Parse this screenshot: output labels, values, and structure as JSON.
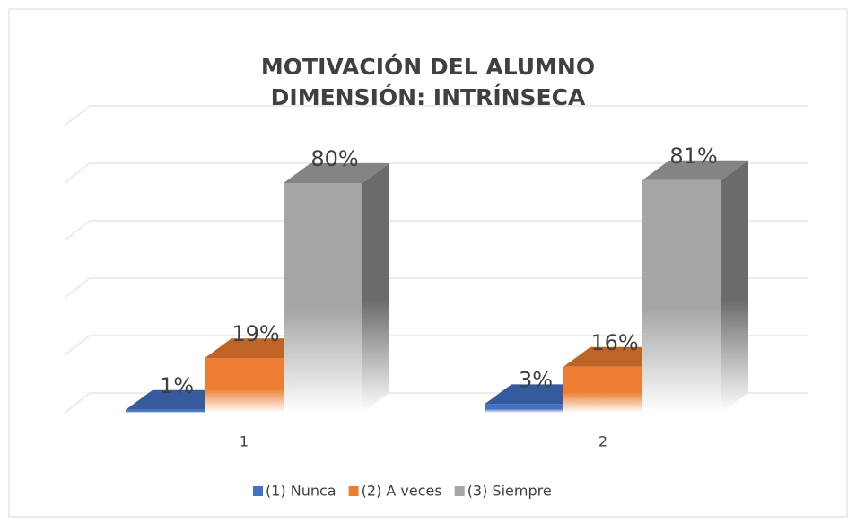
{
  "chart_data": {
    "type": "bar3d",
    "title": [
      "MOTIVACIÓN DEL ALUMNO",
      "DIMENSIÓN: INTRÍNSECA"
    ],
    "categories": [
      "1",
      "2"
    ],
    "series": [
      {
        "name": "(1) Nunca",
        "color": "#4472c4",
        "values": [
          1,
          3
        ],
        "value_labels": [
          "1%",
          "3%"
        ]
      },
      {
        "name": "(2) A veces",
        "color": "#ed7d31",
        "values": [
          19,
          16
        ],
        "value_labels": [
          "19%",
          "16%"
        ]
      },
      {
        "name": "(3) Siempre",
        "color": "#a5a5a5",
        "values": [
          80,
          81
        ],
        "value_labels": [
          "80%",
          "81%"
        ]
      }
    ],
    "ylim": [
      0,
      100
    ],
    "yticks": [
      0,
      20,
      40,
      60,
      80,
      100
    ],
    "grid": true,
    "legend": "bottom"
  }
}
